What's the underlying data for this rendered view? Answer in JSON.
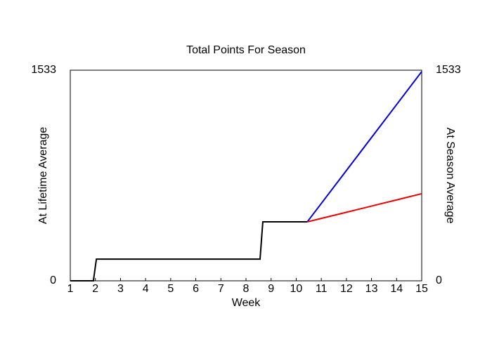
{
  "chart_data": {
    "type": "line",
    "title": "Total Points For Season",
    "x_label": "Week",
    "y_label": "At Lifetime Average",
    "y2_label": "At Season Average",
    "y_label_color": "#0000cc",
    "y2_label_color": "#dd0000",
    "xlim": [
      1,
      15
    ],
    "xticks": [
      1,
      2,
      3,
      4,
      5,
      6,
      7,
      8,
      9,
      10,
      11,
      12,
      13,
      14,
      15
    ],
    "ylim": [
      0,
      1533
    ],
    "yticks": [
      0,
      1533
    ],
    "y2lim": [
      0,
      1533
    ],
    "y2ticks": [
      0,
      1533
    ],
    "series": [
      {
        "color": "#000000",
        "x": [
          1,
          1.92,
          2.04,
          8.56,
          8.67,
          10.44
        ],
        "values": [
          0,
          0,
          158,
          158,
          429,
          429
        ]
      },
      {
        "color": "#0000dd",
        "x": [
          10.44,
          11,
          12,
          13,
          14,
          15
        ],
        "values": [
          429,
          563,
          803,
          1043,
          1283,
          1523
        ]
      },
      {
        "color": "#ee0000",
        "axis": "y2",
        "x": [
          10.44,
          11,
          12,
          13,
          14,
          15
        ],
        "values": [
          429,
          454,
          499,
          544,
          589,
          634
        ]
      }
    ]
  }
}
